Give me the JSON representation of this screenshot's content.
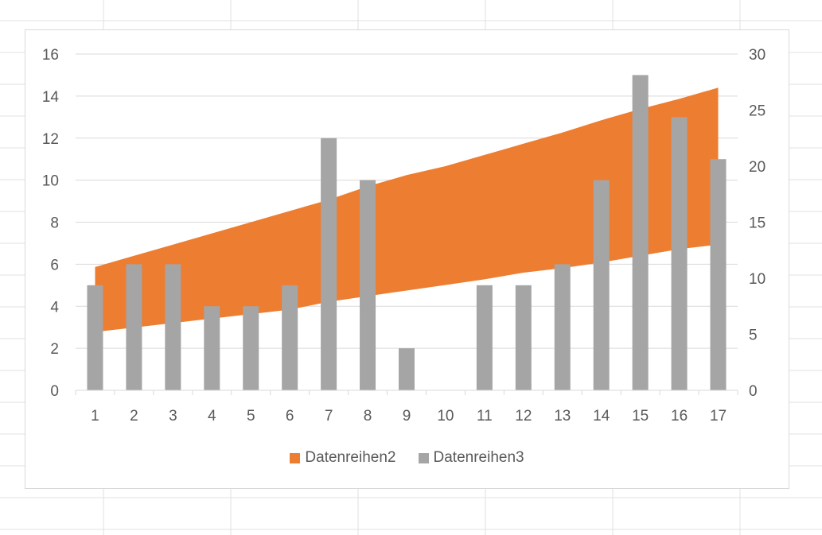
{
  "chart_data": {
    "type": "bar",
    "categories": [
      "1",
      "2",
      "3",
      "4",
      "5",
      "6",
      "7",
      "8",
      "9",
      "10",
      "11",
      "12",
      "13",
      "14",
      "15",
      "16",
      "17"
    ],
    "series": [
      {
        "name": "Datenreihen2",
        "kind": "area-band",
        "axis": "secondary",
        "lower": [
          5.2,
          5.6,
          6.0,
          6.4,
          6.8,
          7.2,
          7.9,
          8.4,
          8.9,
          9.4,
          9.9,
          10.5,
          10.9,
          11.4,
          12.0,
          12.6,
          13.0
        ],
        "upper": [
          11.0,
          12.0,
          13.0,
          14.0,
          15.0,
          16.0,
          17.0,
          18.2,
          19.2,
          20.0,
          21.0,
          22.0,
          23.0,
          24.1,
          25.1,
          26.0,
          27.0
        ],
        "color": "#ED7D31"
      },
      {
        "name": "Datenreihen3",
        "kind": "bar",
        "axis": "primary",
        "values": [
          5,
          6,
          6,
          4,
          4,
          5,
          12,
          10,
          2,
          0,
          5,
          5,
          6,
          10,
          15,
          13,
          11
        ],
        "color": "#A5A5A5"
      }
    ],
    "y_primary": {
      "min": 0,
      "max": 16,
      "step": 2,
      "ticks": [
        "0",
        "2",
        "4",
        "6",
        "8",
        "10",
        "12",
        "14",
        "16"
      ]
    },
    "y_secondary": {
      "min": 0,
      "max": 30,
      "step": 5,
      "ticks": [
        "0",
        "5",
        "10",
        "15",
        "20",
        "25",
        "30"
      ]
    },
    "grid": true,
    "legend": "bottom",
    "title": "",
    "xlabel": "",
    "ylabel": ""
  }
}
